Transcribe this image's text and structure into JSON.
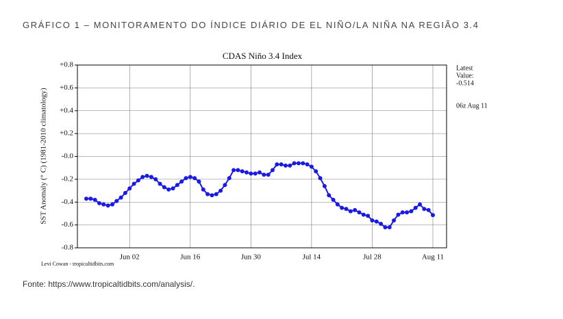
{
  "header": {
    "title": "GRÁFICO 1 – MONITORAMENTO DO ÍNDICE DIÁRIO DE EL NIÑO/LA NIÑA NA REGIÃO 3.4"
  },
  "source": "Fonte: https://www.tropicaltidbits.com/analysis/.",
  "chart_data": {
    "type": "line",
    "title": "CDAS Niño 3.4 Index",
    "ylabel": "SST Anomaly (° C) (1981-2010 climatology)",
    "credit": "Levi Cowan - tropicaltidbits.com",
    "annotations": [
      "Latest",
      "Value:",
      "-0.514",
      "06z Aug 11"
    ],
    "categories": [
      null,
      null,
      null,
      null,
      null,
      null,
      null,
      null,
      null,
      null,
      "Jun 02",
      null,
      null,
      null,
      null,
      null,
      null,
      null,
      null,
      null,
      null,
      null,
      null,
      null,
      "Jun 16",
      null,
      null,
      null,
      null,
      null,
      null,
      null,
      null,
      null,
      null,
      null,
      null,
      null,
      "Jun 30",
      null,
      null,
      null,
      null,
      null,
      null,
      null,
      null,
      null,
      null,
      null,
      null,
      null,
      "Jul 14",
      null,
      null,
      null,
      null,
      null,
      null,
      null,
      null,
      null,
      null,
      null,
      null,
      null,
      "Jul 28",
      null,
      null,
      null,
      null,
      null,
      null,
      null,
      null,
      null,
      null,
      null,
      null,
      null,
      "Aug 11"
    ],
    "series": [
      {
        "name": "CDAS Niño 3.4 Index",
        "color": "#1a1ae6",
        "values": [
          -0.37,
          -0.37,
          -0.38,
          -0.41,
          -0.42,
          -0.43,
          -0.42,
          -0.39,
          -0.36,
          -0.32,
          -0.28,
          -0.24,
          -0.21,
          -0.18,
          -0.17,
          -0.18,
          -0.2,
          -0.24,
          -0.27,
          -0.29,
          -0.28,
          -0.25,
          -0.22,
          -0.19,
          -0.18,
          -0.19,
          -0.22,
          -0.29,
          -0.33,
          -0.34,
          -0.33,
          -0.3,
          -0.25,
          -0.19,
          -0.12,
          -0.12,
          -0.13,
          -0.14,
          -0.15,
          -0.15,
          -0.14,
          -0.16,
          -0.16,
          -0.12,
          -0.07,
          -0.07,
          -0.08,
          -0.08,
          -0.06,
          -0.06,
          -0.06,
          -0.07,
          -0.09,
          -0.13,
          -0.19,
          -0.26,
          -0.34,
          -0.38,
          -0.42,
          -0.45,
          -0.46,
          -0.48,
          -0.47,
          -0.49,
          -0.51,
          -0.52,
          -0.56,
          -0.57,
          -0.59,
          -0.62,
          -0.62,
          -0.56,
          -0.51,
          -0.49,
          -0.49,
          -0.48,
          -0.45,
          -0.42,
          -0.46,
          -0.47,
          -0.514
        ]
      }
    ],
    "ylim": [
      -0.8,
      0.8
    ],
    "yticks": [
      -0.8,
      -0.6,
      -0.4,
      -0.2,
      {
        "value": 0,
        "label": "-0.0"
      },
      {
        "value": 0.2,
        "label": "+0.2"
      },
      {
        "value": 0.4,
        "label": "+0.4"
      },
      {
        "value": 0.6,
        "label": "+0.6"
      },
      {
        "value": 0.8,
        "label": "+0.8"
      }
    ],
    "grid": true
  }
}
